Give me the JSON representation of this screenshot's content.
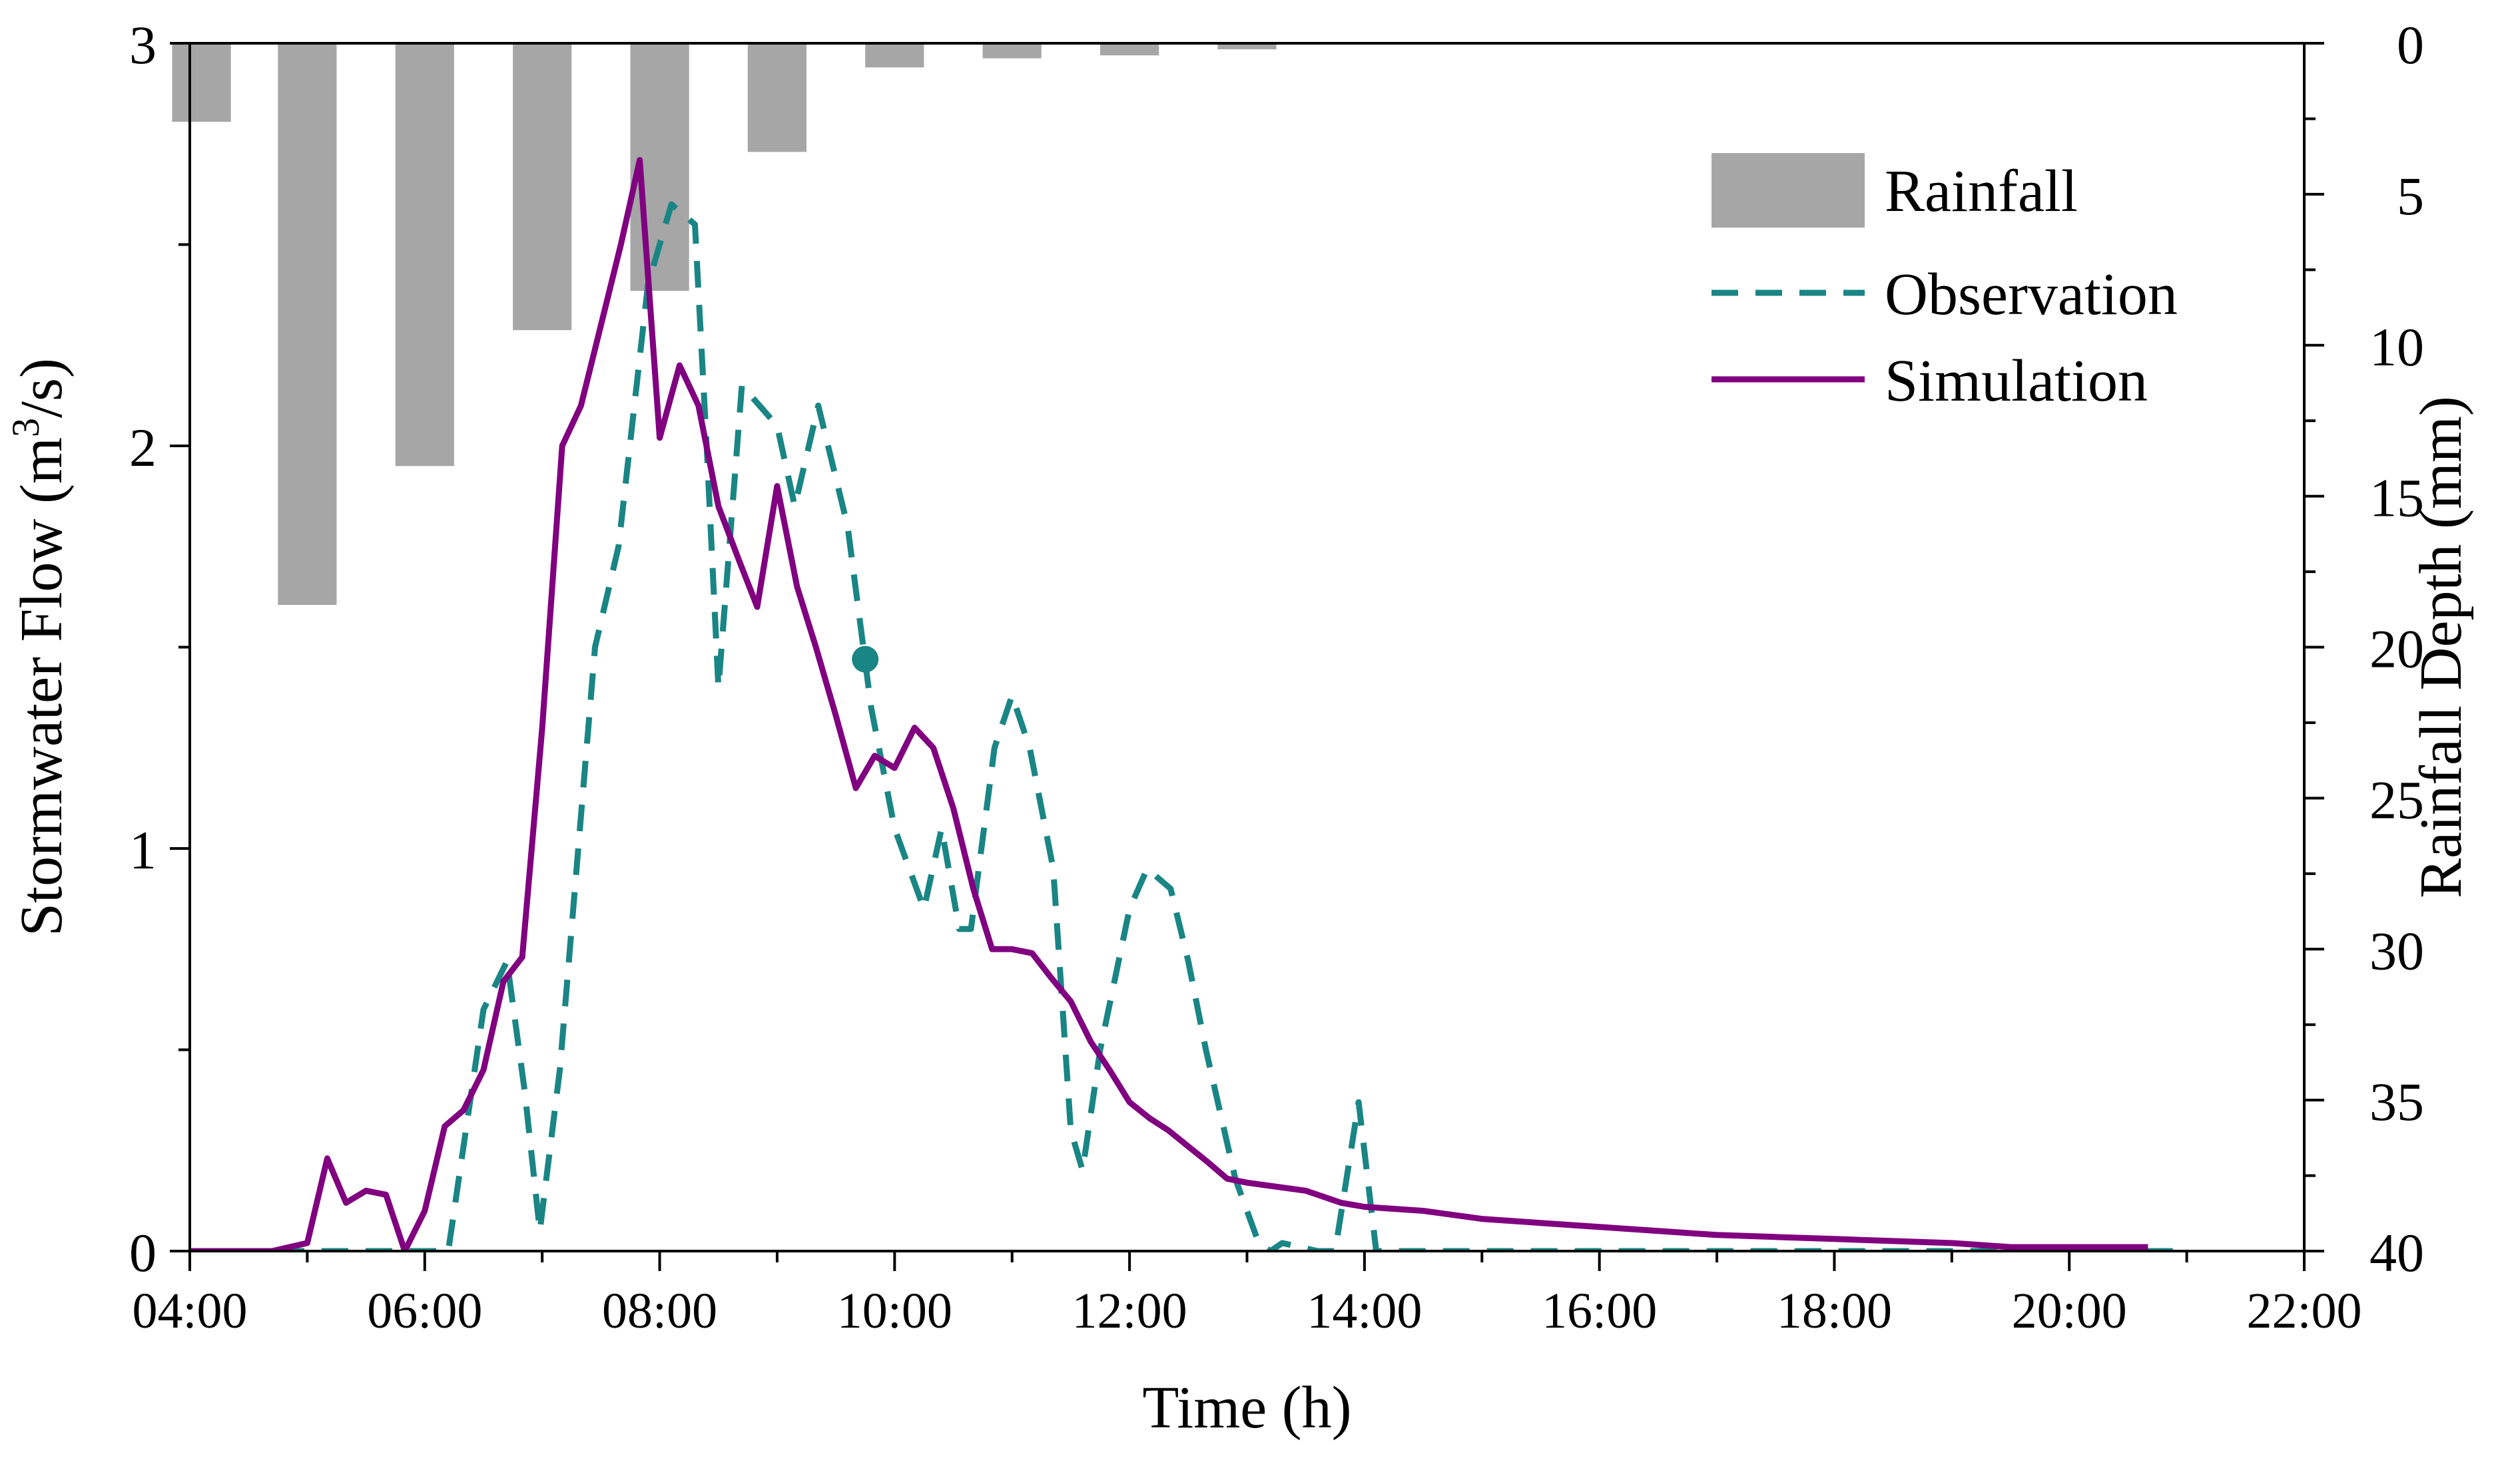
{
  "chart_data": {
    "type": "combo",
    "xlabel": "Time (h)",
    "ylabel_left": "Stormwater Flow (m3/s)",
    "ylabel_left_parts": {
      "prefix": "Stormwater Flow (m",
      "superscript": "3",
      "suffix": "/s)"
    },
    "ylabel_right": "Rainfall Depth (mm)",
    "xlim": [
      4,
      22
    ],
    "ylim_left": [
      0,
      3
    ],
    "ylim_right": [
      0,
      40
    ],
    "right_axis_inverted": true,
    "x_ticks": [
      4,
      6,
      8,
      10,
      12,
      14,
      16,
      18,
      20,
      22
    ],
    "x_tick_labels": [
      "04:00",
      "06:00",
      "08:00",
      "10:00",
      "12:00",
      "14:00",
      "16:00",
      "18:00",
      "20:00",
      "22:00"
    ],
    "y_left_ticks": [
      0,
      1,
      2,
      3
    ],
    "y_left_tick_labels": [
      "0",
      "1",
      "2",
      "3"
    ],
    "y_right_ticks": [
      0,
      5,
      10,
      15,
      20,
      25,
      30,
      35,
      40
    ],
    "y_right_tick_labels": [
      "0",
      "5",
      "10",
      "15",
      "20",
      "25",
      "30",
      "35",
      "40"
    ],
    "legend": {
      "position": "top-right",
      "entries": [
        {
          "label": "Rainfall",
          "type": "bar"
        },
        {
          "label": "Observation",
          "type": "dashed-line"
        },
        {
          "label": "Simulation",
          "type": "solid-line"
        }
      ]
    },
    "colors": {
      "rainfall": "#a6a6a6",
      "observation": "#1a8585",
      "simulation": "#800080",
      "axis": "#000000"
    },
    "series": [
      {
        "name": "Rainfall",
        "axis": "right",
        "type": "bar",
        "bar_width_h": 0.5,
        "x": [
          4.1,
          5.0,
          6.0,
          7.0,
          8.0,
          9.0,
          10.0,
          11.0,
          12.0,
          13.0
        ],
        "values": [
          2.6,
          18.6,
          14.0,
          9.5,
          8.2,
          3.6,
          0.8,
          0.5,
          0.4,
          0.2
        ]
      },
      {
        "name": "Observation",
        "axis": "left",
        "type": "line",
        "style": "dashed",
        "points": [
          [
            4.0,
            0.0
          ],
          [
            5.2,
            0.0
          ],
          [
            6.2,
            0.0
          ],
          [
            6.5,
            0.6
          ],
          [
            6.7,
            0.72
          ],
          [
            6.85,
            0.4
          ],
          [
            6.98,
            0.05
          ],
          [
            7.15,
            0.45
          ],
          [
            7.45,
            1.5
          ],
          [
            7.65,
            1.75
          ],
          [
            7.9,
            2.4
          ],
          [
            8.1,
            2.6
          ],
          [
            8.3,
            2.55
          ],
          [
            8.4,
            2.0
          ],
          [
            8.5,
            1.4
          ],
          [
            8.7,
            2.15
          ],
          [
            8.85,
            2.1
          ],
          [
            9.0,
            2.05
          ],
          [
            9.15,
            1.85
          ],
          [
            9.35,
            2.1
          ],
          [
            9.6,
            1.8
          ],
          [
            9.8,
            1.35
          ],
          [
            10.0,
            1.05
          ],
          [
            10.25,
            0.85
          ],
          [
            10.4,
            1.05
          ],
          [
            10.55,
            0.8
          ],
          [
            10.65,
            0.8
          ],
          [
            10.85,
            1.25
          ],
          [
            11.0,
            1.38
          ],
          [
            11.15,
            1.25
          ],
          [
            11.35,
            0.95
          ],
          [
            11.5,
            0.3
          ],
          [
            11.6,
            0.2
          ],
          [
            11.75,
            0.5
          ],
          [
            12.0,
            0.85
          ],
          [
            12.15,
            0.95
          ],
          [
            12.35,
            0.9
          ],
          [
            12.5,
            0.72
          ],
          [
            12.65,
            0.5
          ],
          [
            12.9,
            0.18
          ],
          [
            13.1,
            0.02
          ],
          [
            13.2,
            0.0
          ],
          [
            13.3,
            0.02
          ],
          [
            13.6,
            0.0
          ],
          [
            13.75,
            0.0
          ],
          [
            13.95,
            0.37
          ],
          [
            14.1,
            0.0
          ],
          [
            21.0,
            0.0
          ]
        ]
      },
      {
        "name": "Simulation",
        "axis": "left",
        "type": "line",
        "style": "solid",
        "points": [
          [
            4.0,
            0.0
          ],
          [
            4.7,
            0.0
          ],
          [
            5.0,
            0.02
          ],
          [
            5.17,
            0.23
          ],
          [
            5.33,
            0.12
          ],
          [
            5.5,
            0.15
          ],
          [
            5.67,
            0.14
          ],
          [
            5.83,
            0.0
          ],
          [
            6.0,
            0.1
          ],
          [
            6.17,
            0.31
          ],
          [
            6.33,
            0.35
          ],
          [
            6.5,
            0.45
          ],
          [
            6.67,
            0.67
          ],
          [
            6.83,
            0.73
          ],
          [
            7.0,
            1.3
          ],
          [
            7.17,
            2.0
          ],
          [
            7.33,
            2.1
          ],
          [
            7.5,
            2.3
          ],
          [
            7.67,
            2.5
          ],
          [
            7.83,
            2.71
          ],
          [
            8.0,
            2.02
          ],
          [
            8.17,
            2.2
          ],
          [
            8.33,
            2.1
          ],
          [
            8.5,
            1.85
          ],
          [
            8.67,
            1.72
          ],
          [
            8.83,
            1.6
          ],
          [
            9.0,
            1.9
          ],
          [
            9.17,
            1.65
          ],
          [
            9.33,
            1.5
          ],
          [
            9.5,
            1.33
          ],
          [
            9.67,
            1.15
          ],
          [
            9.83,
            1.23
          ],
          [
            10.0,
            1.2
          ],
          [
            10.17,
            1.3
          ],
          [
            10.33,
            1.25
          ],
          [
            10.5,
            1.1
          ],
          [
            10.67,
            0.9
          ],
          [
            10.83,
            0.75
          ],
          [
            11.0,
            0.75
          ],
          [
            11.17,
            0.74
          ],
          [
            11.33,
            0.68
          ],
          [
            11.5,
            0.62
          ],
          [
            11.67,
            0.52
          ],
          [
            11.83,
            0.45
          ],
          [
            12.0,
            0.37
          ],
          [
            12.17,
            0.33
          ],
          [
            12.33,
            0.3
          ],
          [
            12.5,
            0.26
          ],
          [
            12.67,
            0.22
          ],
          [
            12.83,
            0.18
          ],
          [
            13.0,
            0.17
          ],
          [
            13.5,
            0.15
          ],
          [
            13.8,
            0.12
          ],
          [
            14.0,
            0.11
          ],
          [
            14.5,
            0.1
          ],
          [
            15.0,
            0.08
          ],
          [
            15.5,
            0.07
          ],
          [
            16.0,
            0.06
          ],
          [
            16.5,
            0.05
          ],
          [
            17.0,
            0.04
          ],
          [
            17.5,
            0.035
          ],
          [
            18.0,
            0.03
          ],
          [
            18.5,
            0.025
          ],
          [
            19.0,
            0.02
          ],
          [
            19.5,
            0.01
          ],
          [
            20.0,
            0.01
          ],
          [
            20.67,
            0.01
          ]
        ]
      }
    ],
    "annotations": [
      {
        "type": "marker",
        "series": "Observation",
        "x": 9.75,
        "y": 1.47
      }
    ]
  }
}
